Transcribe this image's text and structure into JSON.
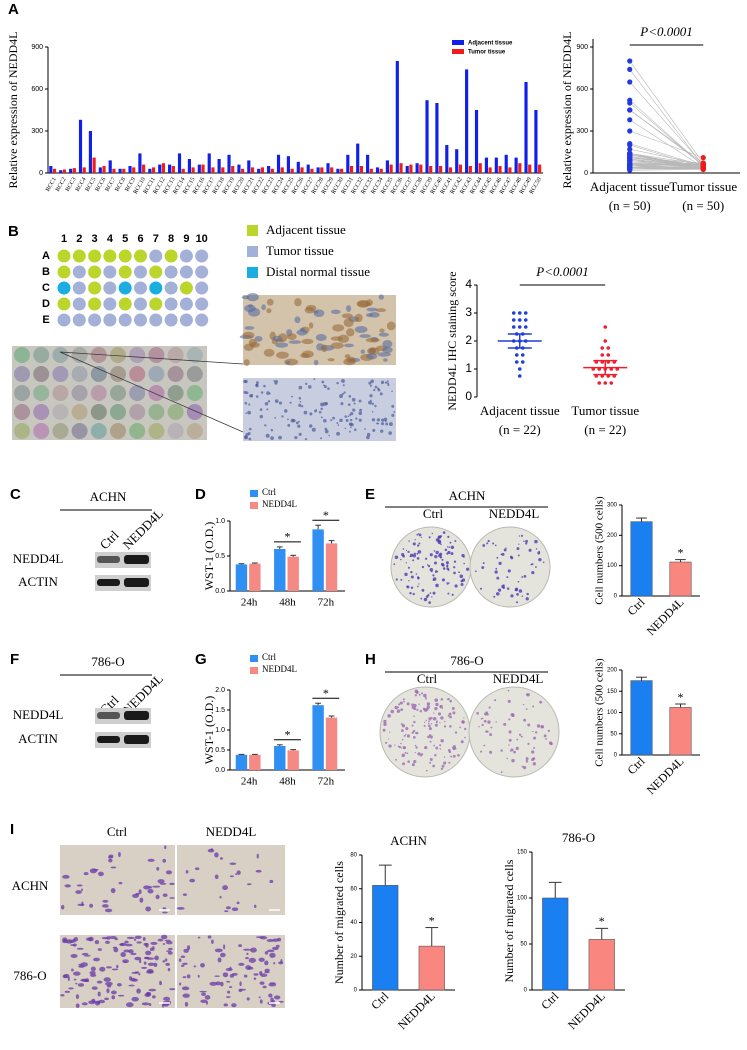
{
  "chart_data": [
    {
      "type": "bar",
      "ylabel": "Relative expression of NEDD4L",
      "categories": [
        "RCC1",
        "RCC2",
        "RCC3",
        "RCC4",
        "RCC5",
        "RCC6",
        "RCC7",
        "RCC8",
        "RCC9",
        "RCC10",
        "RCC11",
        "RCC12",
        "RCC13",
        "RCC14",
        "RCC15",
        "RCC16",
        "RCC17",
        "RCC18",
        "RCC19",
        "RCC20",
        "RCC21",
        "RCC22",
        "RCC23",
        "RCC24",
        "RCC25",
        "RCC26",
        "RCC27",
        "RCC28",
        "RCC29",
        "RCC30",
        "RCC31",
        "RCC32",
        "RCC33",
        "RCC34",
        "RCC35",
        "RCC36",
        "RCC37",
        "RCC38",
        "RCC39",
        "RCC40",
        "RCC41",
        "RCC42",
        "RCC43",
        "RCC44",
        "RCC45",
        "RCC46",
        "RCC47",
        "RCC48",
        "RCC49",
        "RCC50"
      ],
      "series": [
        {
          "name": "Adjacent tissue",
          "color": "#1020e8",
          "values": [
            50,
            20,
            30,
            380,
            300,
            40,
            90,
            30,
            50,
            140,
            30,
            60,
            60,
            140,
            100,
            60,
            140,
            100,
            130,
            60,
            90,
            30,
            50,
            130,
            120,
            80,
            60,
            40,
            70,
            30,
            130,
            210,
            130,
            40,
            90,
            800,
            50,
            70,
            520,
            500,
            200,
            170,
            740,
            450,
            110,
            110,
            130,
            110,
            650,
            450
          ]
        },
        {
          "name": "Tumor tissue",
          "color": "#ee1c1c",
          "values": [
            30,
            25,
            35,
            40,
            110,
            50,
            30,
            30,
            40,
            60,
            40,
            70,
            50,
            30,
            40,
            60,
            40,
            40,
            50,
            30,
            40,
            40,
            30,
            40,
            30,
            40,
            30,
            40,
            40,
            30,
            50,
            50,
            30,
            30,
            60,
            70,
            60,
            60,
            50,
            50,
            40,
            60,
            50,
            70,
            40,
            50,
            40,
            70,
            60,
            60
          ]
        }
      ],
      "ylim": [
        0,
        900
      ],
      "yticks": [
        0,
        300,
        600,
        900
      ],
      "legend": "upper right"
    },
    {
      "type": "scatter",
      "paired": true,
      "ylabel": "Relative expression of NEDD4L",
      "categories": [
        "Adjacent tissue",
        "Tumor tissue"
      ],
      "category_notes": [
        "(n = 50)",
        "(n = 50)"
      ],
      "groups": [
        {
          "color": "#2438e0",
          "values": [
            50,
            20,
            30,
            380,
            300,
            40,
            90,
            30,
            50,
            140,
            30,
            60,
            60,
            140,
            100,
            60,
            140,
            100,
            130,
            60,
            90,
            30,
            50,
            130,
            120,
            80,
            60,
            40,
            70,
            30,
            130,
            210,
            130,
            40,
            90,
            800,
            50,
            70,
            520,
            500,
            200,
            170,
            740,
            450,
            110,
            110,
            130,
            110,
            650,
            450
          ]
        },
        {
          "color": "#ee1c1c",
          "values": [
            30,
            25,
            35,
            40,
            110,
            50,
            30,
            30,
            40,
            60,
            40,
            70,
            50,
            30,
            40,
            60,
            40,
            40,
            50,
            30,
            40,
            40,
            30,
            40,
            30,
            40,
            30,
            40,
            40,
            30,
            50,
            50,
            30,
            30,
            60,
            70,
            60,
            60,
            50,
            50,
            40,
            60,
            50,
            70,
            40,
            50,
            40,
            70,
            60,
            60
          ]
        }
      ],
      "ylim": [
        0,
        900
      ],
      "yticks": [
        0,
        300,
        600,
        900
      ],
      "annotation": "P<0.0001"
    },
    {
      "type": "scatter",
      "paired": false,
      "ylabel": "NEDD4L IHC staining score",
      "categories": [
        "Adjacent tissue",
        "Tumor tissue"
      ],
      "category_notes": [
        "(n = 22)",
        "(n = 22)"
      ],
      "groups": [
        {
          "color": "#1f3fd6",
          "values": [
            3,
            3,
            3,
            2.75,
            2.75,
            2.75,
            2.5,
            2.5,
            2.5,
            2.25,
            2.25,
            2,
            2,
            2,
            1.75,
            1.75,
            1.5,
            1.5,
            1.25,
            1.25,
            1,
            0.75
          ],
          "mean": 2.0,
          "error": 0.25
        },
        {
          "color": "#f01e2e",
          "values": [
            2.5,
            2,
            1.75,
            1.75,
            1.5,
            1.5,
            1.25,
            1.25,
            1.25,
            1.25,
            1,
            1,
            1,
            1,
            1,
            0.75,
            0.75,
            0.75,
            0.75,
            0.5,
            0.5,
            0.5
          ],
          "mean": 1.05,
          "error": 0.25
        }
      ],
      "ylim": [
        0,
        4
      ],
      "yticks": [
        0,
        1,
        2,
        3,
        4
      ],
      "annotation": "P<0.0001"
    },
    {
      "type": "bar",
      "ylabel": "WST-1 (O.D.)",
      "categories": [
        "24h",
        "48h",
        "72h"
      ],
      "series": [
        {
          "name": "Ctrl",
          "color": "#2f8ff2",
          "values": [
            0.38,
            0.6,
            0.88
          ],
          "errors": [
            0.01,
            0.03,
            0.06
          ]
        },
        {
          "name": "NEDD4L",
          "color": "#f58a84",
          "values": [
            0.39,
            0.49,
            0.68
          ],
          "errors": [
            0.01,
            0.02,
            0.04
          ]
        }
      ],
      "ylim": [
        0,
        1.0
      ],
      "yticks": [
        {
          "value": 0,
          "label": "0.0"
        },
        0.5,
        {
          "value": 1,
          "label": "1.0"
        }
      ],
      "legend": "upper left",
      "annotations": [
        {
          "text": "*",
          "x": "48h"
        },
        {
          "text": "*",
          "x": "72h"
        }
      ]
    },
    {
      "type": "bar",
      "ylabel": "Cell numbers (500 cells)",
      "categories": [
        "Ctrl",
        "NEDD4L"
      ],
      "values": [
        245,
        112
      ],
      "errors": [
        12,
        8
      ],
      "colors": [
        "#1a7ff0",
        "#f9877f"
      ],
      "ylim": [
        0,
        300
      ],
      "yticks": [
        0,
        100,
        200,
        300
      ],
      "annotations": [
        {
          "text": "*",
          "x": "NEDD4L"
        }
      ]
    },
    {
      "type": "bar",
      "ylabel": "WST-1 (O.D.)",
      "categories": [
        "24h",
        "48h",
        "72h"
      ],
      "series": [
        {
          "name": "Ctrl",
          "color": "#2f8ff2",
          "values": [
            0.38,
            0.6,
            1.62
          ],
          "errors": [
            0.01,
            0.03,
            0.05
          ]
        },
        {
          "name": "NEDD4L",
          "color": "#f58a84",
          "values": [
            0.38,
            0.49,
            1.31
          ],
          "errors": [
            0.01,
            0.02,
            0.04
          ]
        }
      ],
      "ylim": [
        0,
        2.0
      ],
      "yticks": [
        {
          "value": 0,
          "label": "0.0"
        },
        0.5,
        {
          "value": 1,
          "label": "1.0"
        },
        1.5,
        {
          "value": 2,
          "label": "2.0"
        }
      ],
      "legend": "upper left",
      "annotations": [
        {
          "text": "*",
          "x": "48h"
        },
        {
          "text": "*",
          "x": "72h"
        }
      ]
    },
    {
      "type": "bar",
      "ylabel": "Cell numbers (500 cells)",
      "categories": [
        "Ctrl",
        "NEDD4L"
      ],
      "values": [
        175,
        112
      ],
      "errors": [
        8,
        8
      ],
      "colors": [
        "#1a7ff0",
        "#f9877f"
      ],
      "ylim": [
        0,
        200
      ],
      "yticks": [
        0,
        50,
        100,
        150,
        200
      ],
      "annotations": [
        {
          "text": "*",
          "x": "NEDD4L"
        }
      ]
    },
    {
      "type": "bar",
      "title": "ACHN",
      "ylabel": "Number of migrated cells",
      "categories": [
        "Ctrl",
        "NEDD4L"
      ],
      "values": [
        62,
        26
      ],
      "errors": [
        12,
        11
      ],
      "colors": [
        "#1a7ff0",
        "#f9877f"
      ],
      "ylim": [
        0,
        80
      ],
      "yticks": [
        0,
        20,
        40,
        60,
        80
      ],
      "annotations": [
        {
          "text": "*",
          "x": "NEDD4L"
        }
      ]
    },
    {
      "type": "bar",
      "title": "786-O",
      "ylabel": "Number of migrated cells",
      "categories": [
        "Ctrl",
        "NEDD4L"
      ],
      "values": [
        100,
        55
      ],
      "errors": [
        17,
        12
      ],
      "colors": [
        "#1a7ff0",
        "#f9877f"
      ],
      "ylim": [
        0,
        150
      ],
      "yticks": [
        0,
        50,
        100,
        150
      ],
      "annotations": [
        {
          "text": "*",
          "x": "NEDD4L"
        }
      ]
    }
  ],
  "figure": {
    "panels": [
      "A",
      "B",
      "C",
      "D",
      "E",
      "F",
      "G",
      "H",
      "I"
    ],
    "tma": {
      "columns": [
        "1",
        "2",
        "3",
        "4",
        "5",
        "6",
        "7",
        "8",
        "9",
        "10"
      ],
      "rows": [
        "A",
        "B",
        "C",
        "D",
        "E"
      ],
      "legend": [
        {
          "name": "Adjacent tissue",
          "color": "#bcd52a"
        },
        {
          "name": "Tumor tissue",
          "color": "#a3b0d8"
        },
        {
          "name": "Distal normal tissue",
          "color": "#1aaee0"
        }
      ]
    },
    "C": {
      "cell_line": "ACHN",
      "lanes": [
        "Ctrl",
        "NEDD4L"
      ],
      "rows": [
        "NEDD4L",
        "ACTIN"
      ]
    },
    "F": {
      "cell_line": "786-O",
      "lanes": [
        "Ctrl",
        "NEDD4L"
      ],
      "rows": [
        "NEDD4L",
        "ACTIN"
      ]
    },
    "E": {
      "cell_line": "ACHN",
      "lanes": [
        "Ctrl",
        "NEDD4L"
      ]
    },
    "H": {
      "cell_line": "786-O",
      "lanes": [
        "Ctrl",
        "NEDD4L"
      ]
    },
    "I": {
      "columns": [
        "Ctrl",
        "NEDD4L"
      ],
      "rows": [
        "ACHN",
        "786-O"
      ]
    }
  }
}
